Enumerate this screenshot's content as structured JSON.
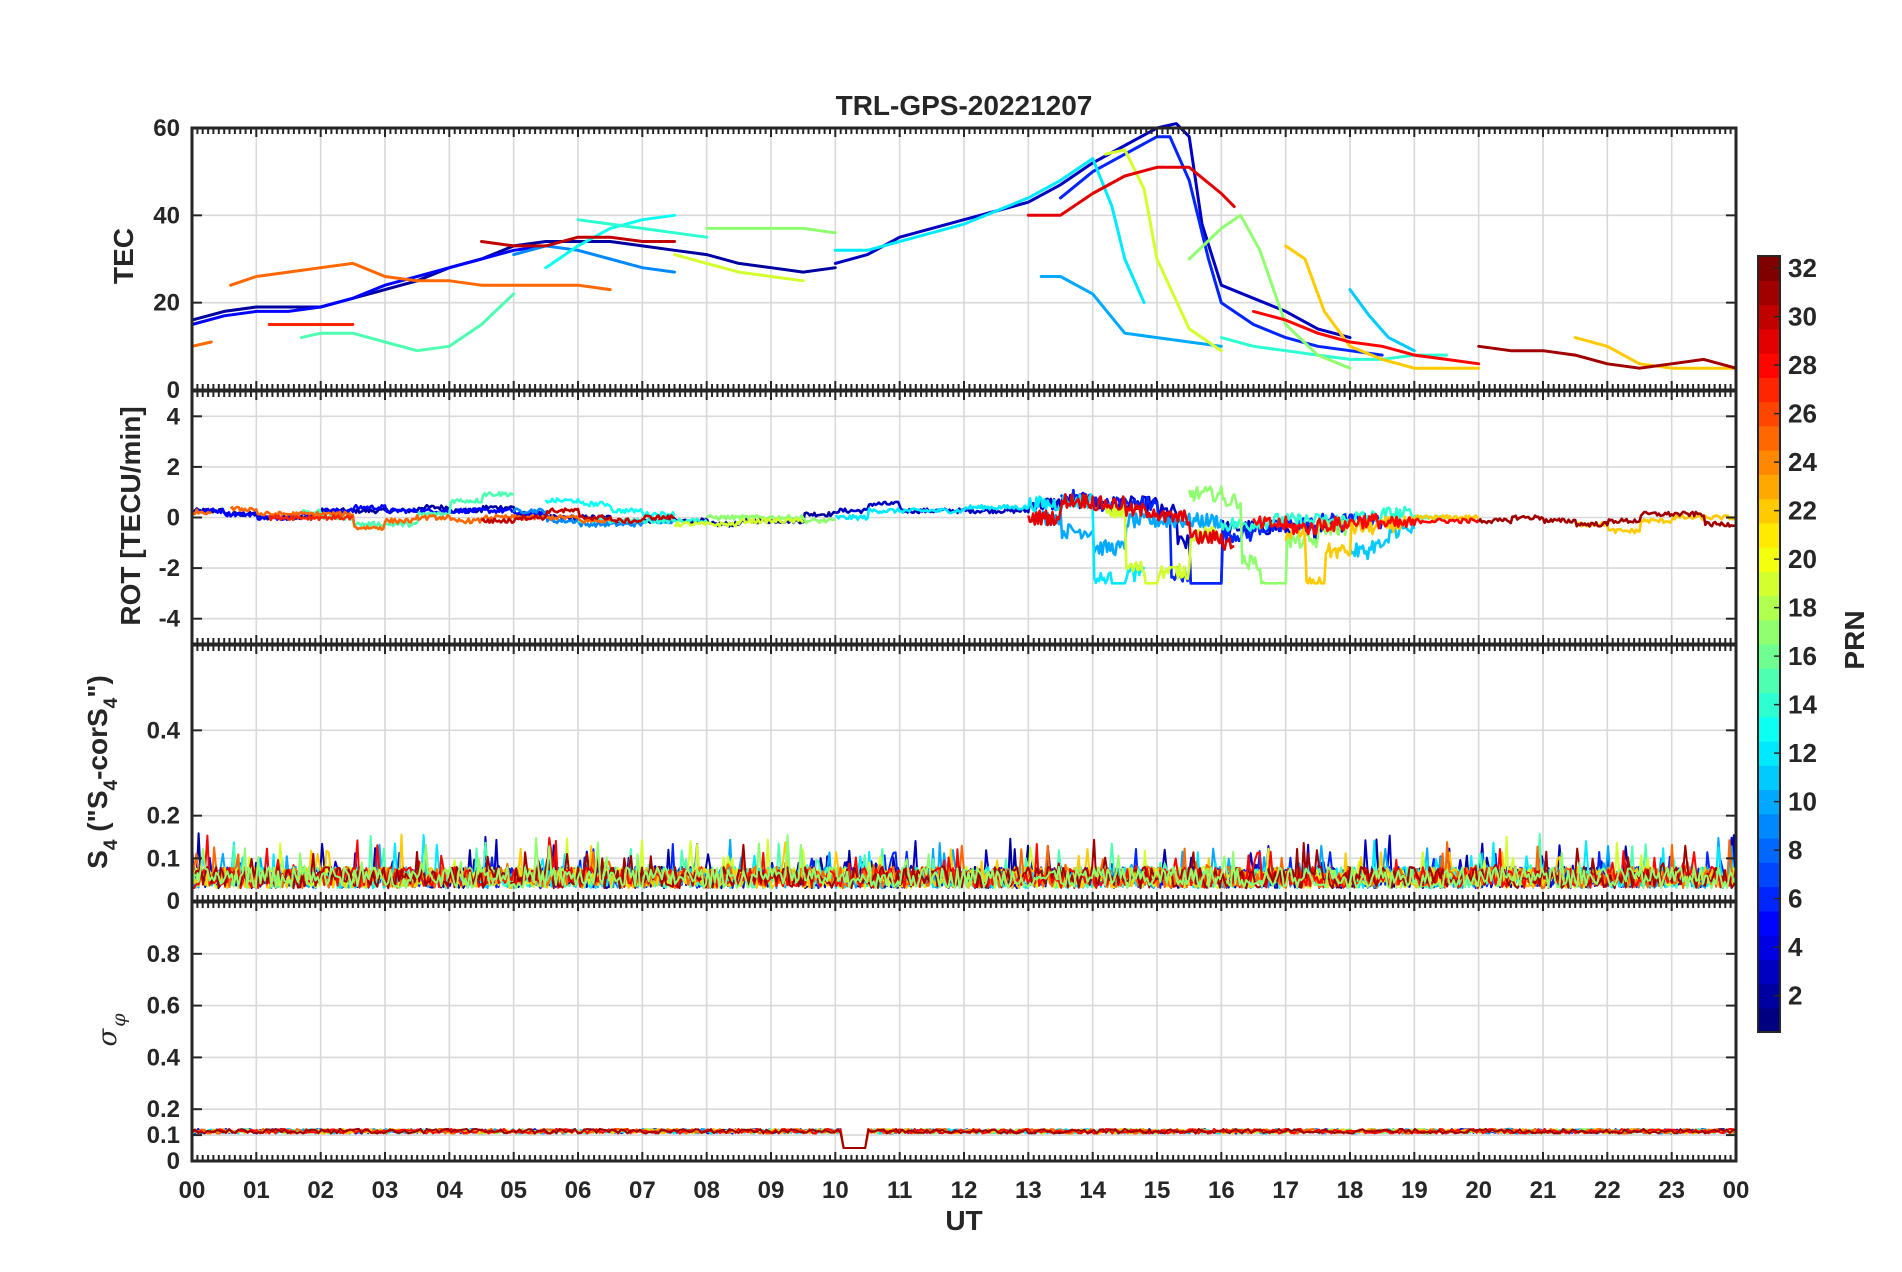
{
  "chart_data": {
    "type": "line",
    "title": "TRL-GPS-20221207",
    "xlabel": "UT",
    "x_ticks": [
      "00",
      "01",
      "02",
      "03",
      "04",
      "05",
      "06",
      "07",
      "08",
      "09",
      "10",
      "11",
      "12",
      "13",
      "14",
      "15",
      "16",
      "17",
      "18",
      "19",
      "20",
      "21",
      "22",
      "23",
      "00"
    ],
    "x_range_hours": [
      0,
      24
    ],
    "colorbar": {
      "label": "PRN",
      "range": [
        1,
        32
      ],
      "ticks": [
        "2",
        "4",
        "6",
        "8",
        "10",
        "12",
        "14",
        "16",
        "18",
        "20",
        "22",
        "24",
        "26",
        "28",
        "30",
        "32"
      ],
      "colormap": "jet"
    },
    "panels": [
      {
        "id": "tec",
        "ylabel": "TEC",
        "ylim": [
          0,
          60
        ],
        "yticks": [
          "0",
          "20",
          "40",
          "60"
        ],
        "ytick_values": [
          0,
          20,
          40,
          60
        ],
        "series": [
          {
            "prn": 2,
            "t": [
              0,
              0.5,
              1,
              1.5,
              2,
              2.5,
              3,
              3.5,
              4,
              4.5,
              5,
              5.5,
              6,
              6.5,
              7,
              7.5,
              8,
              8.5,
              9,
              9.5,
              10
            ],
            "v": [
              16,
              18,
              19,
              19,
              19,
              21,
              23,
              25,
              28,
              30,
              33,
              34,
              34,
              34,
              33,
              32,
              31,
              29,
              28,
              27,
              28
            ]
          },
          {
            "prn": 3,
            "t": [
              10,
              10.5,
              11,
              11.5,
              12,
              12.5,
              13,
              13.5,
              14,
              14.5,
              15,
              15.3,
              15.5,
              15.7,
              16,
              16.5,
              17,
              17.5,
              18
            ],
            "v": [
              29,
              31,
              35,
              37,
              39,
              41,
              43,
              47,
              52,
              56,
              60,
              61,
              58,
              38,
              24,
              21,
              18,
              14,
              12
            ]
          },
          {
            "prn": 5,
            "t": [
              0,
              0.5,
              1,
              1.5,
              2,
              2.5,
              3,
              3.5,
              4,
              4.5,
              5,
              5.5
            ],
            "v": [
              15,
              17,
              18,
              18,
              19,
              21,
              24,
              26,
              28,
              30,
              32,
              33
            ]
          },
          {
            "prn": 6,
            "t": [
              13.5,
              14,
              14.5,
              15,
              15.2,
              15.5,
              15.8,
              16,
              16.5,
              17,
              17.5,
              18,
              18.5
            ],
            "v": [
              44,
              50,
              54,
              58,
              58,
              48,
              30,
              20,
              15,
              12,
              10,
              9,
              8
            ]
          },
          {
            "prn": 9,
            "t": [
              5,
              5.5,
              6,
              6.5,
              7,
              7.5
            ],
            "v": [
              31,
              33,
              32,
              30,
              28,
              27
            ]
          },
          {
            "prn": 10,
            "t": [
              13.2,
              13.5,
              14,
              14.5,
              15,
              15.5,
              16
            ],
            "v": [
              26,
              26,
              22,
              13,
              12,
              11,
              10
            ]
          },
          {
            "prn": 11,
            "t": [
              18,
              18.3,
              18.6,
              19
            ],
            "v": [
              23,
              17,
              12,
              9
            ]
          },
          {
            "prn": 12,
            "t": [
              10,
              10.5,
              11,
              11.5,
              12,
              12.5,
              13,
              13.5,
              14,
              14.3,
              14.5,
              14.8
            ],
            "v": [
              32,
              32,
              34,
              36,
              38,
              41,
              44,
              48,
              53,
              42,
              30,
              20
            ]
          },
          {
            "prn": 13,
            "t": [
              5.5,
              6,
              6.5,
              7,
              7.5
            ],
            "v": [
              28,
              33,
              37,
              39,
              40
            ]
          },
          {
            "prn": 14,
            "t": [
              6,
              6.5,
              7,
              7.5,
              8
            ],
            "v": [
              39,
              38,
              37,
              36,
              35
            ]
          },
          {
            "prn": 14,
            "t": [
              16,
              16.5,
              17,
              17.5,
              18,
              18.5,
              19,
              19.5
            ],
            "v": [
              12,
              10,
              9,
              8,
              7,
              7,
              8,
              8
            ]
          },
          {
            "prn": 15,
            "t": [
              1.7,
              2,
              2.5,
              3,
              3.5,
              4,
              4.5,
              5
            ],
            "v": [
              12,
              13,
              13,
              11,
              9,
              10,
              15,
              22
            ]
          },
          {
            "prn": 17,
            "t": [
              8,
              8.5,
              9,
              9.5,
              10
            ],
            "v": [
              37,
              37,
              37,
              37,
              36
            ]
          },
          {
            "prn": 17,
            "t": [
              15.5,
              16,
              16.3,
              16.6,
              17,
              17.5,
              18
            ],
            "v": [
              30,
              37,
              40,
              32,
              15,
              8,
              5
            ]
          },
          {
            "prn": 19,
            "t": [
              14.2,
              14.5,
              14.8,
              15,
              15.5,
              16
            ],
            "v": [
              54,
              55,
              46,
              30,
              14,
              9
            ]
          },
          {
            "prn": 19,
            "t": [
              7.5,
              8,
              8.5,
              9,
              9.5
            ],
            "v": [
              31,
              29,
              27,
              26,
              25
            ]
          },
          {
            "prn": 22,
            "t": [
              17,
              17.3,
              17.6,
              18,
              18.5,
              19,
              19.5,
              20
            ],
            "v": [
              33,
              30,
              18,
              10,
              7,
              5,
              5,
              5
            ]
          },
          {
            "prn": 22,
            "t": [
              21.5,
              22,
              22.5,
              23,
              23.5,
              24
            ],
            "v": [
              12,
              10,
              6,
              5,
              5,
              5
            ]
          },
          {
            "prn": 25,
            "t": [
              0.6,
              1,
              1.5,
              2,
              2.5,
              3,
              3.5,
              4,
              4.5,
              5,
              5.5,
              6,
              6.5
            ],
            "v": [
              24,
              26,
              27,
              28,
              29,
              26,
              25,
              25,
              24,
              24,
              24,
              24,
              23
            ]
          },
          {
            "prn": 25,
            "t": [
              0,
              0.3
            ],
            "v": [
              10,
              11
            ]
          },
          {
            "prn": 27,
            "t": [
              1.2,
              1.5,
              2,
              2.5
            ],
            "v": [
              15,
              15,
              15,
              15
            ]
          },
          {
            "prn": 28,
            "t": [
              16.5,
              17,
              17.5,
              18,
              18.5,
              19,
              19.5,
              20
            ],
            "v": [
              18,
              16,
              13,
              11,
              10,
              8,
              7,
              6
            ]
          },
          {
            "prn": 29,
            "t": [
              13,
              13.5,
              14,
              14.5,
              15,
              15.5,
              16,
              16.2
            ],
            "v": [
              40,
              40,
              45,
              49,
              51,
              51,
              45,
              42
            ]
          },
          {
            "prn": 30,
            "t": [
              4.5,
              5,
              5.5,
              6,
              6.5,
              7,
              7.5
            ],
            "v": [
              34,
              33,
              33,
              35,
              35,
              34,
              34
            ]
          },
          {
            "prn": 31,
            "t": [
              20,
              20.5,
              21,
              21.5,
              22,
              22.5,
              23,
              23.5,
              24
            ],
            "v": [
              10,
              9,
              9,
              8,
              6,
              5,
              6,
              7,
              5
            ]
          }
        ]
      },
      {
        "id": "rot",
        "ylabel": "ROT [TECU/min]",
        "ylim": [
          -5,
          5
        ],
        "yticks": [
          "-4",
          "-2",
          "0",
          "2",
          "4"
        ],
        "ytick_values": [
          -4,
          -2,
          0,
          2,
          4
        ]
      },
      {
        "id": "s4",
        "ylabel": "S4 (\"S4-corS4\")",
        "ylabel_parts": {
          "a": "S",
          "b": "4",
          "c": " (\"S",
          "d": "4",
          "e": "-corS",
          "f": "4",
          "g": "\")"
        },
        "ylim": [
          0,
          0.6
        ],
        "yticks": [
          "0",
          "0.1",
          "0.2",
          "0.4"
        ],
        "ytick_values": [
          0,
          0.1,
          0.2,
          0.4
        ]
      },
      {
        "id": "sigphi",
        "ylabel": "σφ",
        "ylabel_parts": {
          "a": "σ",
          "b": "φ"
        },
        "ylim": [
          0,
          1
        ],
        "yticks": [
          "0",
          "0.1",
          "0.2",
          "0.4",
          "0.6",
          "0.8"
        ],
        "ytick_values": [
          0,
          0.1,
          0.2,
          0.4,
          0.6,
          0.8
        ]
      }
    ]
  }
}
